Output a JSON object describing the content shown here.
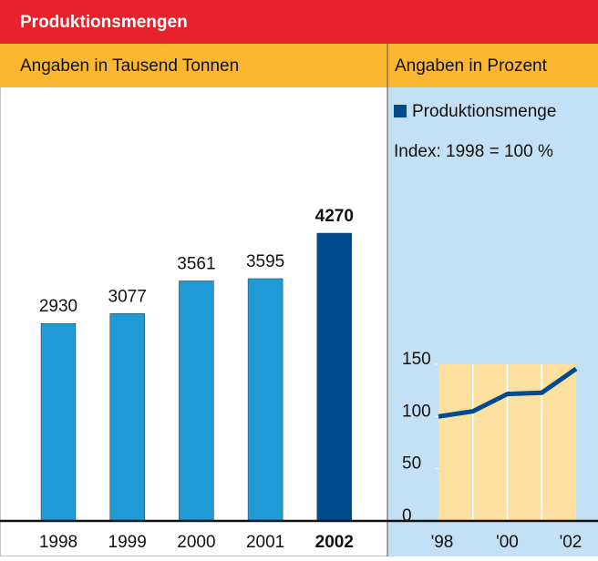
{
  "header": {
    "title": "Produktionsmengen"
  },
  "chart_data": [
    {
      "type": "bar",
      "subtitle": "Angaben in Tausend Tonnen",
      "categories": [
        "1998",
        "1999",
        "2000",
        "2001",
        "2002"
      ],
      "values": [
        2930,
        3077,
        3561,
        3595,
        4270
      ],
      "color": "#1e9ad6",
      "highlight": "2002",
      "highlight_color": "#004b8d"
    },
    {
      "type": "line",
      "subtitle": "Angaben in Prozent",
      "categories": [
        "'98",
        null,
        "'00",
        null,
        "'02"
      ],
      "series": [
        {
          "name": "Produktionsmenge",
          "color": "#004b8d",
          "values": [
            100,
            105,
            121.5,
            122.7,
            145.7
          ]
        }
      ],
      "annotation": "Index: 1998 = 100 %",
      "ylim": [
        0,
        150
      ],
      "yticks": [
        0,
        50,
        100,
        150
      ]
    }
  ]
}
